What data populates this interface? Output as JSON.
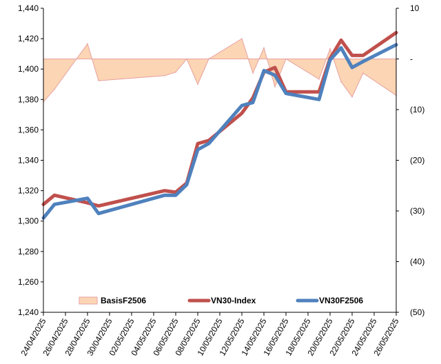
{
  "chart_data": {
    "type": "line",
    "x": [
      "24/04/2025",
      "25/04/2025",
      "28/04/2025",
      "29/04/2025",
      "02/05/2025",
      "05/05/2025",
      "06/05/2025",
      "07/05/2025",
      "08/05/2025",
      "09/05/2025",
      "12/05/2025",
      "13/05/2025",
      "14/05/2025",
      "15/05/2025",
      "16/05/2025",
      "19/05/2025",
      "20/05/2025",
      "21/05/2025",
      "22/05/2025",
      "23/05/2025",
      "26/05/2025"
    ],
    "x_ticks": [
      "24/04/2025",
      "26/04/2025",
      "28/04/2025",
      "30/04/2025",
      "02/05/2025",
      "04/05/2025",
      "06/05/2025",
      "08/05/2025",
      "10/05/2025",
      "12/05/2025",
      "14/05/2025",
      "16/05/2025",
      "18/05/2025",
      "20/05/2025",
      "22/05/2025",
      "24/05/2025",
      "26/05/2025"
    ],
    "y_left": {
      "lim": [
        1240,
        1440
      ],
      "ticks": [
        "1,240",
        "1,260",
        "1,280",
        "1,300",
        "1,320",
        "1,340",
        "1,360",
        "1,380",
        "1,400",
        "1,420",
        "1,440"
      ]
    },
    "y_right": {
      "lim": [
        -50,
        10
      ],
      "ticks": [
        "(50)",
        "(40)",
        "(30)",
        "(20)",
        "(10)",
        "-",
        "10"
      ]
    },
    "series": [
      {
        "name": "BasisF2506",
        "axis": "right",
        "kind": "area",
        "color": "#fcd5b4",
        "stroke": "#e6a0a0",
        "points": [
          [
            "24/04/2025",
            -8.5
          ],
          [
            "25/04/2025",
            -6
          ],
          [
            "28/04/2025",
            3
          ],
          [
            "29/04/2025",
            -4.3
          ],
          [
            "05/05/2025",
            -3.3
          ],
          [
            "06/05/2025",
            -2.6
          ],
          [
            "07/05/2025",
            0
          ],
          [
            "08/05/2025",
            -5
          ],
          [
            "09/05/2025",
            0
          ],
          [
            "12/05/2025",
            4
          ],
          [
            "13/05/2025",
            -2.8
          ],
          [
            "14/05/2025",
            2.2
          ],
          [
            "15/05/2025",
            -5.5
          ],
          [
            "16/05/2025",
            0
          ],
          [
            "19/05/2025",
            -4
          ],
          [
            "20/05/2025",
            2
          ],
          [
            "21/05/2025",
            -4.5
          ],
          [
            "22/05/2025",
            -7.5
          ],
          [
            "23/05/2025",
            -2.8
          ],
          [
            "26/05/2025",
            -7.2
          ]
        ]
      },
      {
        "name": "VN30-Index",
        "axis": "left",
        "kind": "line",
        "color": "#c0504d",
        "points": [
          [
            "24/04/2025",
            1311
          ],
          [
            "25/04/2025",
            1317
          ],
          [
            "28/04/2025",
            1312
          ],
          [
            "29/04/2025",
            1310
          ],
          [
            "05/05/2025",
            1320
          ],
          [
            "06/05/2025",
            1319
          ],
          [
            "07/05/2025",
            1325
          ],
          [
            "08/05/2025",
            1351
          ],
          [
            "09/05/2025",
            1353
          ],
          [
            "12/05/2025",
            1371
          ],
          [
            "13/05/2025",
            1381
          ],
          [
            "14/05/2025",
            1398
          ],
          [
            "15/05/2025",
            1401
          ],
          [
            "16/05/2025",
            1385
          ],
          [
            "19/05/2025",
            1385
          ],
          [
            "20/05/2025",
            1407
          ],
          [
            "21/05/2025",
            1419
          ],
          [
            "22/05/2025",
            1409
          ],
          [
            "23/05/2025",
            1409
          ],
          [
            "26/05/2025",
            1424
          ]
        ]
      },
      {
        "name": "VN30F2506",
        "axis": "left",
        "kind": "line",
        "color": "#4f81bd",
        "points": [
          [
            "24/04/2025",
            1302
          ],
          [
            "25/04/2025",
            1311
          ],
          [
            "28/04/2025",
            1315
          ],
          [
            "29/04/2025",
            1305
          ],
          [
            "05/05/2025",
            1317
          ],
          [
            "06/05/2025",
            1317
          ],
          [
            "07/05/2025",
            1324
          ],
          [
            "08/05/2025",
            1347
          ],
          [
            "09/05/2025",
            1351
          ],
          [
            "12/05/2025",
            1376
          ],
          [
            "13/05/2025",
            1378
          ],
          [
            "14/05/2025",
            1399
          ],
          [
            "15/05/2025",
            1396
          ],
          [
            "16/05/2025",
            1384
          ],
          [
            "19/05/2025",
            1380
          ],
          [
            "20/05/2025",
            1406
          ],
          [
            "21/05/2025",
            1414
          ],
          [
            "22/05/2025",
            1401
          ],
          [
            "23/05/2025",
            1405
          ],
          [
            "26/05/2025",
            1416
          ]
        ]
      }
    ],
    "legend": {
      "position": "bottom-inside",
      "entries": [
        "BasisF2506",
        "VN30-Index",
        "VN30F2506"
      ]
    },
    "grid": false
  }
}
